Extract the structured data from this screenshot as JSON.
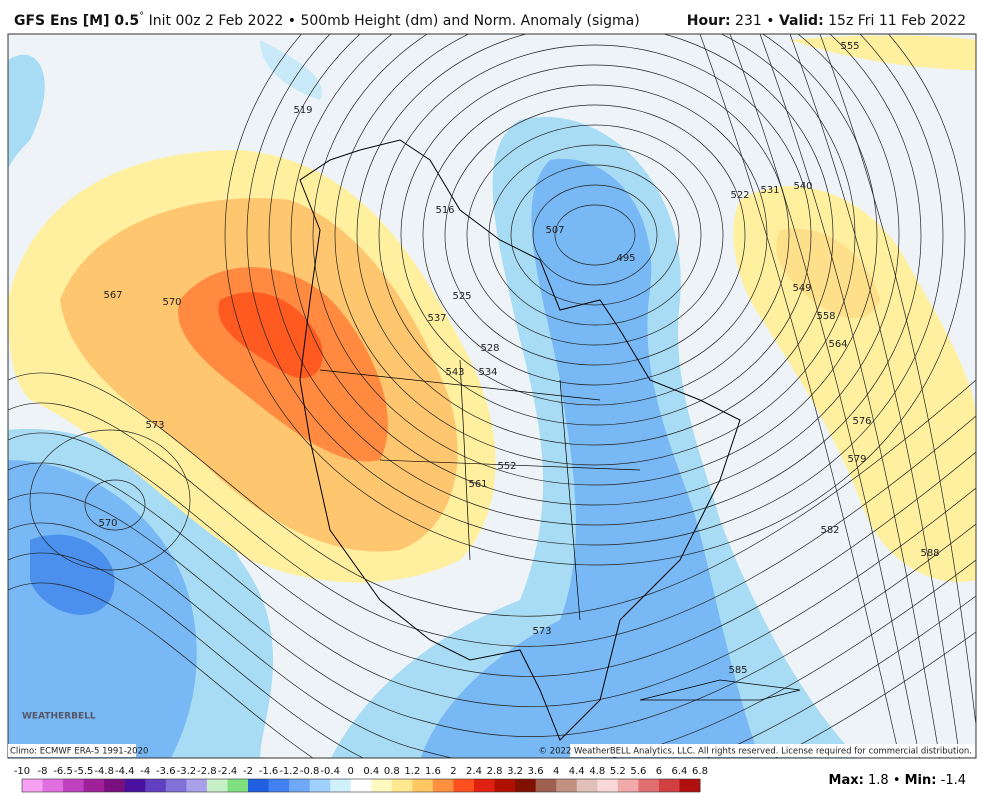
{
  "header": {
    "model": "GFS Ens [M] 0.5",
    "degree": "°",
    "init": "Init 00z 2 Feb 2022",
    "sep": "•",
    "product": "500mb Height (dm) and Norm. Anomaly (sigma)",
    "hour_label": "Hour:",
    "hour": "231",
    "valid_label": "Valid:",
    "valid": "15z Fri 11 Feb 2022"
  },
  "map": {
    "contour_labels": [
      "519",
      "516",
      "525",
      "537",
      "528",
      "534",
      "543",
      "552",
      "561",
      "567",
      "570",
      "573",
      "570",
      "573",
      "522",
      "531",
      "540",
      "549",
      "558",
      "564",
      "576",
      "579",
      "582",
      "588",
      "585",
      "555",
      "495",
      "507"
    ],
    "logo": "WEATHERBELL"
  },
  "footer": {
    "climo": "Climo: ECMWF ERA-5 1991-2020",
    "copyright": "© 2022 WeatherBELL Analytics, LLC. All rights reserved. License required for commercial distribution."
  },
  "colorbar": {
    "ticks": [
      -10,
      -8,
      -6.5,
      -5.5,
      -4.8,
      -4.4,
      -4,
      -3.6,
      -3.2,
      -2.8,
      -2.4,
      -2,
      -1.6,
      -1.2,
      -0.8,
      -0.4,
      0,
      0.4,
      0.8,
      1.2,
      1.6,
      2,
      2.4,
      2.8,
      3.2,
      3.6,
      4,
      4.4,
      4.8,
      5.2,
      5.6,
      6,
      6.4,
      6.8
    ],
    "colors": [
      "#f5a0f0",
      "#e070e0",
      "#c040c0",
      "#a0209a",
      "#7a1080",
      "#4a10a0",
      "#6040c0",
      "#8070d8",
      "#a8a0e8",
      "#c8f0c8",
      "#80e080",
      "#2060e0",
      "#4080f0",
      "#70a8f8",
      "#a0d0fc",
      "#d0f0fc",
      "#ffffff",
      "#fff8c0",
      "#ffe890",
      "#ffc860",
      "#ff9040",
      "#ff5020",
      "#e02010",
      "#b01000",
      "#801000",
      "#a06050",
      "#c09080",
      "#e0c0b8",
      "#f8d8d8",
      "#f0a8a8",
      "#e07070",
      "#d04040",
      "#b01010"
    ]
  },
  "stats": {
    "max_label": "Max:",
    "max": 1.8,
    "sep": "•",
    "min_label": "Min:",
    "min": -1.4
  }
}
